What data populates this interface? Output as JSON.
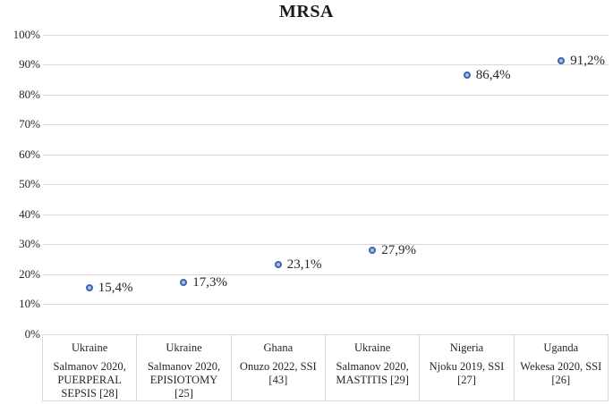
{
  "title": "MRSA",
  "colors": {
    "marker_ring": "#3a66b0",
    "marker_fill": "#a9bfe6",
    "gridline": "#d9d9d9",
    "text": "#262626"
  },
  "chart_data": {
    "type": "scatter",
    "title": "MRSA",
    "xlabel": "",
    "ylabel": "",
    "ylim": [
      0,
      100
    ],
    "grid": true,
    "legend": "none",
    "y_tick_labels": [
      "100%",
      "90%",
      "80%",
      "70%",
      "60%",
      "50%",
      "40%",
      "30%",
      "20%",
      "10%",
      "0%"
    ],
    "y_tick_values": [
      100,
      90,
      80,
      70,
      60,
      50,
      40,
      30,
      20,
      10,
      0
    ],
    "categories": [
      {
        "country": "Ukraine",
        "study": "Salmanov 2020, PUERPERAL SEPSIS [28]"
      },
      {
        "country": "Ukraine",
        "study": "Salmanov 2020, EPISIOTOMY [25]"
      },
      {
        "country": "Ghana",
        "study": "Onuzo 2022, SSI [43]"
      },
      {
        "country": "Ukraine",
        "study": "Salmanov 2020, MASTITIS [29]"
      },
      {
        "country": "Nigeria",
        "study": "Njoku 2019, SSI [27]"
      },
      {
        "country": "Uganda",
        "study": "Wekesa 2020, SSI [26]"
      }
    ],
    "values": [
      15.4,
      17.3,
      23.1,
      27.9,
      86.4,
      91.2
    ],
    "point_labels": [
      "15,4%",
      "17,3%",
      "23,1%",
      "27,9%",
      "86,4%",
      "91,2%"
    ]
  }
}
